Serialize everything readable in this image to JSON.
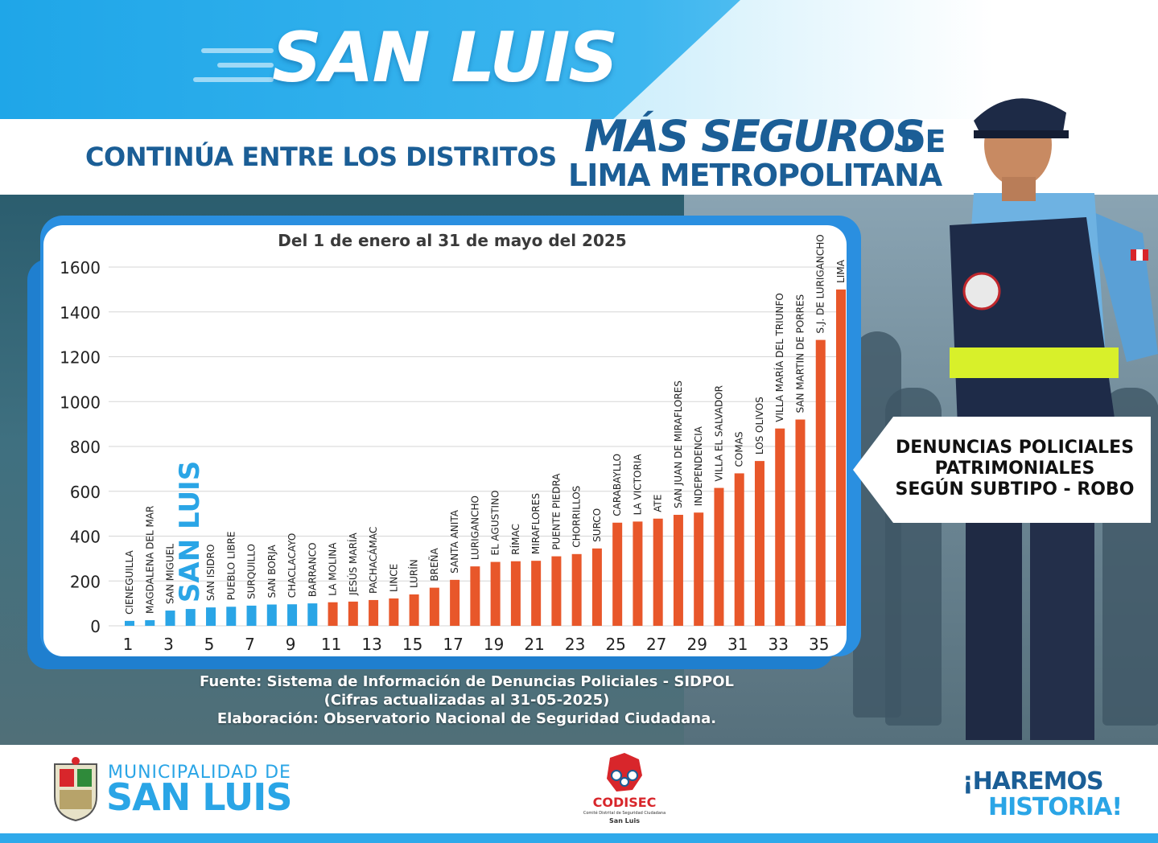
{
  "header": {
    "brand": "SAN LUIS",
    "subtitle_left": "CONTINÚA ENTRE LOS DISTRITOS",
    "subtitle_big": "MÁS SEGUROS",
    "subtitle_de": "DE",
    "subtitle_lima": "LIMA METROPOLITANA"
  },
  "callout": {
    "line1": "DENUNCIAS POLICIALES",
    "line2": "PATRIMONIALES",
    "line3": "SEGÚN SUBTIPO - ROBO"
  },
  "notes": {
    "line1": "Fuente: Sistema de Información de Denuncias Policiales - SIDPOL",
    "line2": "(Cifras actualizadas al 31-05-2025)",
    "line3": "Elaboración: Observatorio Nacional de Seguridad Ciudadana."
  },
  "footer": {
    "muni_line1": "MUNICIPALIDAD DE",
    "muni_line2": "SAN LUIS",
    "codisec_name": "CODISEC",
    "codisec_sub": "Comité Distrital de Seguridad Ciudadana",
    "codisec_place": "San Luis",
    "slogan_line1": "¡HAREMOS",
    "slogan_line2": "HISTORIA!"
  },
  "colors": {
    "light_blue_bar": "#2aa5e6",
    "orange_bar": "#e8572a",
    "dark_blue_text": "#1b5e96",
    "highlight_label": "#2aa5e6"
  },
  "chart_data": {
    "type": "bar",
    "title": "Del 1 de enero al 31 de mayo del 2025",
    "ylim": [
      0,
      1600
    ],
    "yticks": [
      0,
      200,
      400,
      600,
      800,
      1000,
      1200,
      1400,
      1600
    ],
    "xticks": [
      1,
      3,
      5,
      7,
      9,
      11,
      13,
      15,
      17,
      19,
      21,
      23,
      25,
      27,
      29,
      31,
      33,
      35
    ],
    "grid": true,
    "highlight_category": "SAN LUIS",
    "categories": [
      "CIENEGUILLA",
      "MAGDALENA DEL MAR",
      "SAN MIGUEL",
      "SAN LUIS",
      "SAN ISIDRO",
      "PUEBLO LIBRE",
      "SURQUILLO",
      "SAN BORJA",
      "CHACLACAYO",
      "BARRANCO",
      "LA MOLINA",
      "JESÚS MARÍA",
      "PACHACÁMAC",
      "LINCE",
      "LURÍN",
      "BREÑA",
      "SANTA ANITA",
      "LURIGANCHO",
      "EL AGUSTINO",
      "RÍMAC",
      "MIRAFLORES",
      "PUENTE PIEDRA",
      "CHORRILLOS",
      "SURCO",
      "CARABAYLLO",
      "LA VICTORIA",
      "ATE",
      "SAN JUAN DE MIRAFLORES",
      "INDEPENDENCIA",
      "VILLA EL SALVADOR",
      "COMAS",
      "LOS OLIVOS",
      "VILLA MARÍA DEL TRIUNFO",
      "SAN MARTIN DE PORRES",
      "S.J. DE LURIGANCHO",
      "LIMA"
    ],
    "values": [
      22,
      25,
      68,
      75,
      82,
      85,
      90,
      95,
      96,
      100,
      105,
      108,
      115,
      122,
      140,
      170,
      205,
      265,
      285,
      288,
      290,
      310,
      320,
      345,
      460,
      465,
      478,
      495,
      505,
      615,
      680,
      735,
      880,
      920,
      1275,
      1500
    ],
    "bar_colors": [
      "#2aa5e6",
      "#2aa5e6",
      "#2aa5e6",
      "#2aa5e6",
      "#2aa5e6",
      "#2aa5e6",
      "#2aa5e6",
      "#2aa5e6",
      "#2aa5e6",
      "#2aa5e6",
      "#e8572a",
      "#e8572a",
      "#e8572a",
      "#e8572a",
      "#e8572a",
      "#e8572a",
      "#e8572a",
      "#e8572a",
      "#e8572a",
      "#e8572a",
      "#e8572a",
      "#e8572a",
      "#e8572a",
      "#e8572a",
      "#e8572a",
      "#e8572a",
      "#e8572a",
      "#e8572a",
      "#e8572a",
      "#e8572a",
      "#e8572a",
      "#e8572a",
      "#e8572a",
      "#e8572a",
      "#e8572a",
      "#e8572a"
    ]
  }
}
